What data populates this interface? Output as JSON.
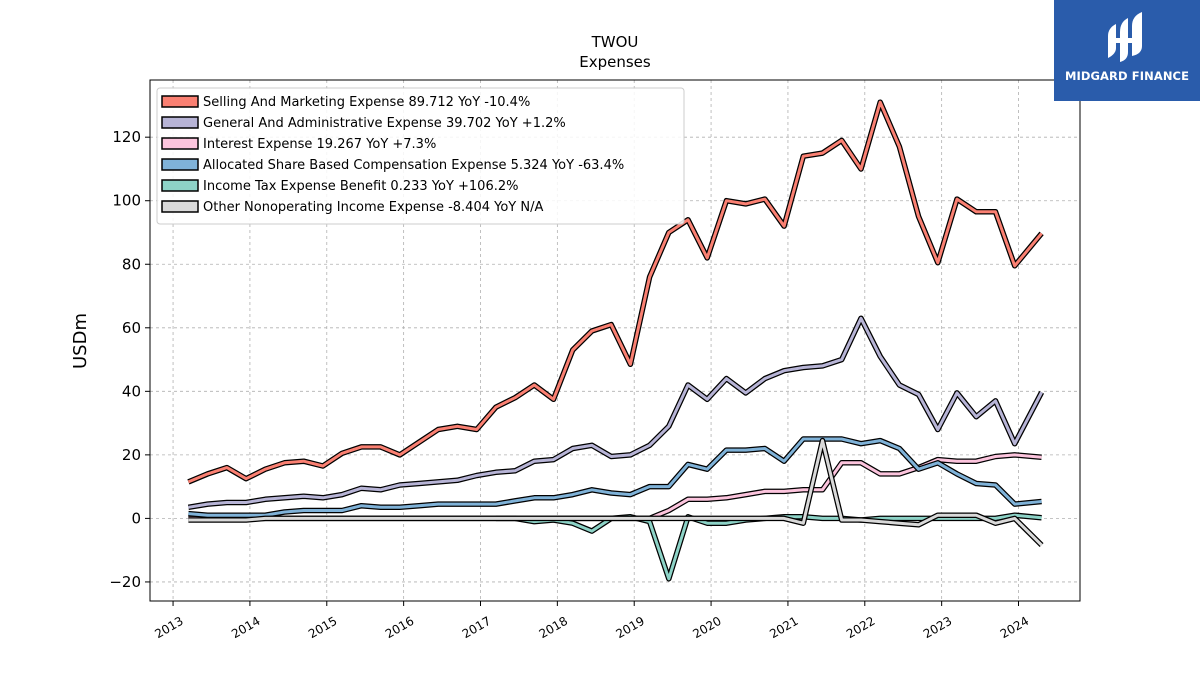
{
  "logo": {
    "text": "MIDGARD FINANCE",
    "icon": "midgard-finance-logo-icon",
    "background": "#2a5cab"
  },
  "chart_data": {
    "type": "line",
    "title": "TWOU",
    "subtitle": "Expenses",
    "xlabel": "",
    "ylabel": "USDm",
    "xlim": [
      2012.7,
      2024.8
    ],
    "ylim": [
      -26,
      138
    ],
    "yticks": [
      -20,
      0,
      20,
      40,
      60,
      80,
      100,
      120
    ],
    "ytick_labels": [
      "−20",
      "0",
      "20",
      "40",
      "60",
      "80",
      "100",
      "120"
    ],
    "xticks": [
      2013,
      2014,
      2015,
      2016,
      2017,
      2018,
      2019,
      2020,
      2021,
      2022,
      2023,
      2024
    ],
    "xtick_labels": [
      "2013",
      "2014",
      "2015",
      "2016",
      "2017",
      "2018",
      "2019",
      "2020",
      "2021",
      "2022",
      "2023",
      "2024"
    ],
    "grid": true,
    "legend_position": "top-left",
    "series": [
      {
        "name": "Selling And Marketing Expense  89.712 YoY -10.4%",
        "color": "#fa8072",
        "x": [
          2013.2,
          2013.45,
          2013.7,
          2013.95,
          2014.2,
          2014.45,
          2014.7,
          2014.95,
          2015.2,
          2015.45,
          2015.7,
          2015.95,
          2016.2,
          2016.45,
          2016.7,
          2016.95,
          2017.2,
          2017.45,
          2017.7,
          2017.95,
          2018.2,
          2018.45,
          2018.7,
          2018.95,
          2019.2,
          2019.45,
          2019.7,
          2019.95,
          2020.2,
          2020.45,
          2020.7,
          2020.95,
          2021.2,
          2021.45,
          2021.7,
          2021.95,
          2022.2,
          2022.45,
          2022.7,
          2022.95,
          2023.2,
          2023.45,
          2023.7,
          2023.95,
          2024.3
        ],
        "y": [
          11.5,
          14,
          16,
          12.5,
          15.5,
          17.5,
          18,
          16.5,
          20.5,
          22.5,
          22.5,
          20,
          24,
          28,
          29,
          28,
          35,
          38,
          42,
          37.5,
          53,
          59,
          61,
          48.5,
          76,
          90,
          94,
          82,
          100,
          99,
          100.5,
          92,
          114,
          115,
          119,
          110,
          131,
          117,
          95,
          80.5,
          100.5,
          96.5,
          96.5,
          79.5,
          89.712
        ]
      },
      {
        "name": "General And Administrative Expense  39.702 YoY +1.2%",
        "color": "#b7b4d6",
        "x": [
          2013.2,
          2013.45,
          2013.7,
          2013.95,
          2014.2,
          2014.45,
          2014.7,
          2014.95,
          2015.2,
          2015.45,
          2015.7,
          2015.95,
          2016.2,
          2016.45,
          2016.7,
          2016.95,
          2017.2,
          2017.45,
          2017.7,
          2017.95,
          2018.2,
          2018.45,
          2018.7,
          2018.95,
          2019.2,
          2019.45,
          2019.7,
          2019.95,
          2020.2,
          2020.45,
          2020.7,
          2020.95,
          2021.2,
          2021.45,
          2021.7,
          2021.95,
          2022.2,
          2022.45,
          2022.7,
          2022.95,
          2023.2,
          2023.45,
          2023.7,
          2023.95,
          2024.3
        ],
        "y": [
          3.5,
          4.5,
          5,
          5,
          6,
          6.5,
          7,
          6.5,
          7.5,
          9.5,
          9,
          10.5,
          11,
          11.5,
          12,
          13.5,
          14.5,
          15,
          18,
          18.5,
          22,
          23,
          19.5,
          20,
          23,
          29,
          42,
          37.5,
          44,
          39.5,
          44,
          46.5,
          47.5,
          48,
          50,
          63,
          51,
          42,
          39,
          28,
          39.5,
          32,
          37,
          23.5,
          39.702
        ]
      },
      {
        "name": "Interest Expense  19.267 YoY +7.3%",
        "color": "#fcc4dd",
        "x": [
          2013.2,
          2013.45,
          2013.7,
          2013.95,
          2014.2,
          2014.45,
          2014.7,
          2014.95,
          2015.2,
          2015.45,
          2015.7,
          2015.95,
          2016.2,
          2016.45,
          2016.7,
          2016.95,
          2017.2,
          2017.45,
          2017.7,
          2017.95,
          2018.2,
          2018.45,
          2018.7,
          2018.95,
          2019.2,
          2019.45,
          2019.7,
          2019.95,
          2020.2,
          2020.45,
          2020.7,
          2020.95,
          2021.2,
          2021.45,
          2021.7,
          2021.95,
          2022.2,
          2022.45,
          2022.7,
          2022.95,
          2023.2,
          2023.45,
          2023.7,
          2023.95,
          2024.3
        ],
        "y": [
          0,
          0,
          0,
          0,
          0,
          0,
          0,
          0,
          0,
          0,
          0,
          0,
          0,
          0,
          0,
          0,
          0,
          0,
          0,
          0,
          0,
          0,
          0,
          0,
          0,
          2.5,
          6,
          6,
          6.5,
          7.5,
          8.5,
          8.5,
          9,
          9,
          17.5,
          17.5,
          14,
          14,
          16,
          18.5,
          18,
          18,
          19.5,
          20,
          19.267
        ]
      },
      {
        "name": "Allocated Share Based Compensation Expense  5.324 YoY -63.4%",
        "color": "#7fb2d8",
        "x": [
          2013.2,
          2013.45,
          2013.7,
          2013.95,
          2014.2,
          2014.45,
          2014.7,
          2014.95,
          2015.2,
          2015.45,
          2015.7,
          2015.95,
          2016.2,
          2016.45,
          2016.7,
          2016.95,
          2017.2,
          2017.45,
          2017.7,
          2017.95,
          2018.2,
          2018.45,
          2018.7,
          2018.95,
          2019.2,
          2019.45,
          2019.7,
          2019.95,
          2020.2,
          2020.45,
          2020.7,
          2020.95,
          2021.2,
          2021.45,
          2021.7,
          2021.95,
          2022.2,
          2022.45,
          2022.7,
          2022.95,
          2023.2,
          2023.45,
          2023.7,
          2023.95,
          2024.3
        ],
        "y": [
          1.5,
          1,
          1,
          1,
          1,
          2,
          2.5,
          2.5,
          2.5,
          4,
          3.5,
          3.5,
          4,
          4.5,
          4.5,
          4.5,
          4.5,
          5.5,
          6.5,
          6.5,
          7.5,
          9,
          8,
          7.5,
          10,
          10,
          17,
          15.5,
          21.5,
          21.5,
          22,
          18,
          25,
          25,
          25,
          23.5,
          24.5,
          22,
          15.5,
          17.5,
          14,
          11,
          10.5,
          4.5,
          5.324
        ]
      },
      {
        "name": "Income Tax Expense Benefit  0.233 YoY +106.2%",
        "color": "#8dd3c7",
        "x": [
          2017.2,
          2017.45,
          2017.7,
          2017.95,
          2018.2,
          2018.45,
          2018.7,
          2018.95,
          2019.2,
          2019.45,
          2019.7,
          2019.95,
          2020.2,
          2020.45,
          2020.7,
          2020.95,
          2021.2,
          2021.45,
          2021.7,
          2021.95,
          2022.2,
          2022.45,
          2022.7,
          2022.95,
          2023.2,
          2023.45,
          2023.7,
          2023.95,
          2024.3
        ],
        "y": [
          0,
          0,
          -1,
          -0.5,
          -1.5,
          -4,
          0,
          0.5,
          -1,
          -19,
          0.5,
          -1.5,
          -1.5,
          -0.5,
          0,
          0.5,
          0.5,
          0,
          0,
          -0.5,
          0,
          0,
          0,
          0,
          0,
          0,
          0,
          1,
          0.233
        ]
      },
      {
        "name": "Other Nonoperating Income Expense  -8.404 YoY N/A",
        "color": "#d9d9d9",
        "x": [
          2013.2,
          2013.45,
          2013.7,
          2013.95,
          2014.2,
          2014.45,
          2014.7,
          2014.95,
          2015.2,
          2015.45,
          2015.7,
          2015.95,
          2016.2,
          2016.45,
          2016.7,
          2016.95,
          2017.2,
          2017.45,
          2017.7,
          2017.95,
          2018.2,
          2018.45,
          2018.7,
          2018.95,
          2019.2,
          2019.45,
          2019.7,
          2019.95,
          2020.2,
          2020.45,
          2020.7,
          2020.95,
          2021.2,
          2021.45,
          2021.7,
          2021.95,
          2022.2,
          2022.45,
          2022.7,
          2022.95,
          2023.2,
          2023.45,
          2023.7,
          2023.95,
          2024.3
        ],
        "y": [
          -0.5,
          -0.5,
          -0.5,
          -0.5,
          0,
          0,
          0,
          0,
          0,
          0,
          0,
          0,
          0,
          0,
          0,
          0,
          0,
          0,
          0,
          0,
          0,
          0,
          0,
          0,
          0,
          0,
          0,
          0,
          0,
          0,
          0,
          0,
          -1.5,
          24.5,
          -0.5,
          -0.5,
          -1,
          -1.5,
          -2,
          1,
          1,
          1,
          -1.5,
          0,
          -8.404
        ]
      }
    ]
  }
}
